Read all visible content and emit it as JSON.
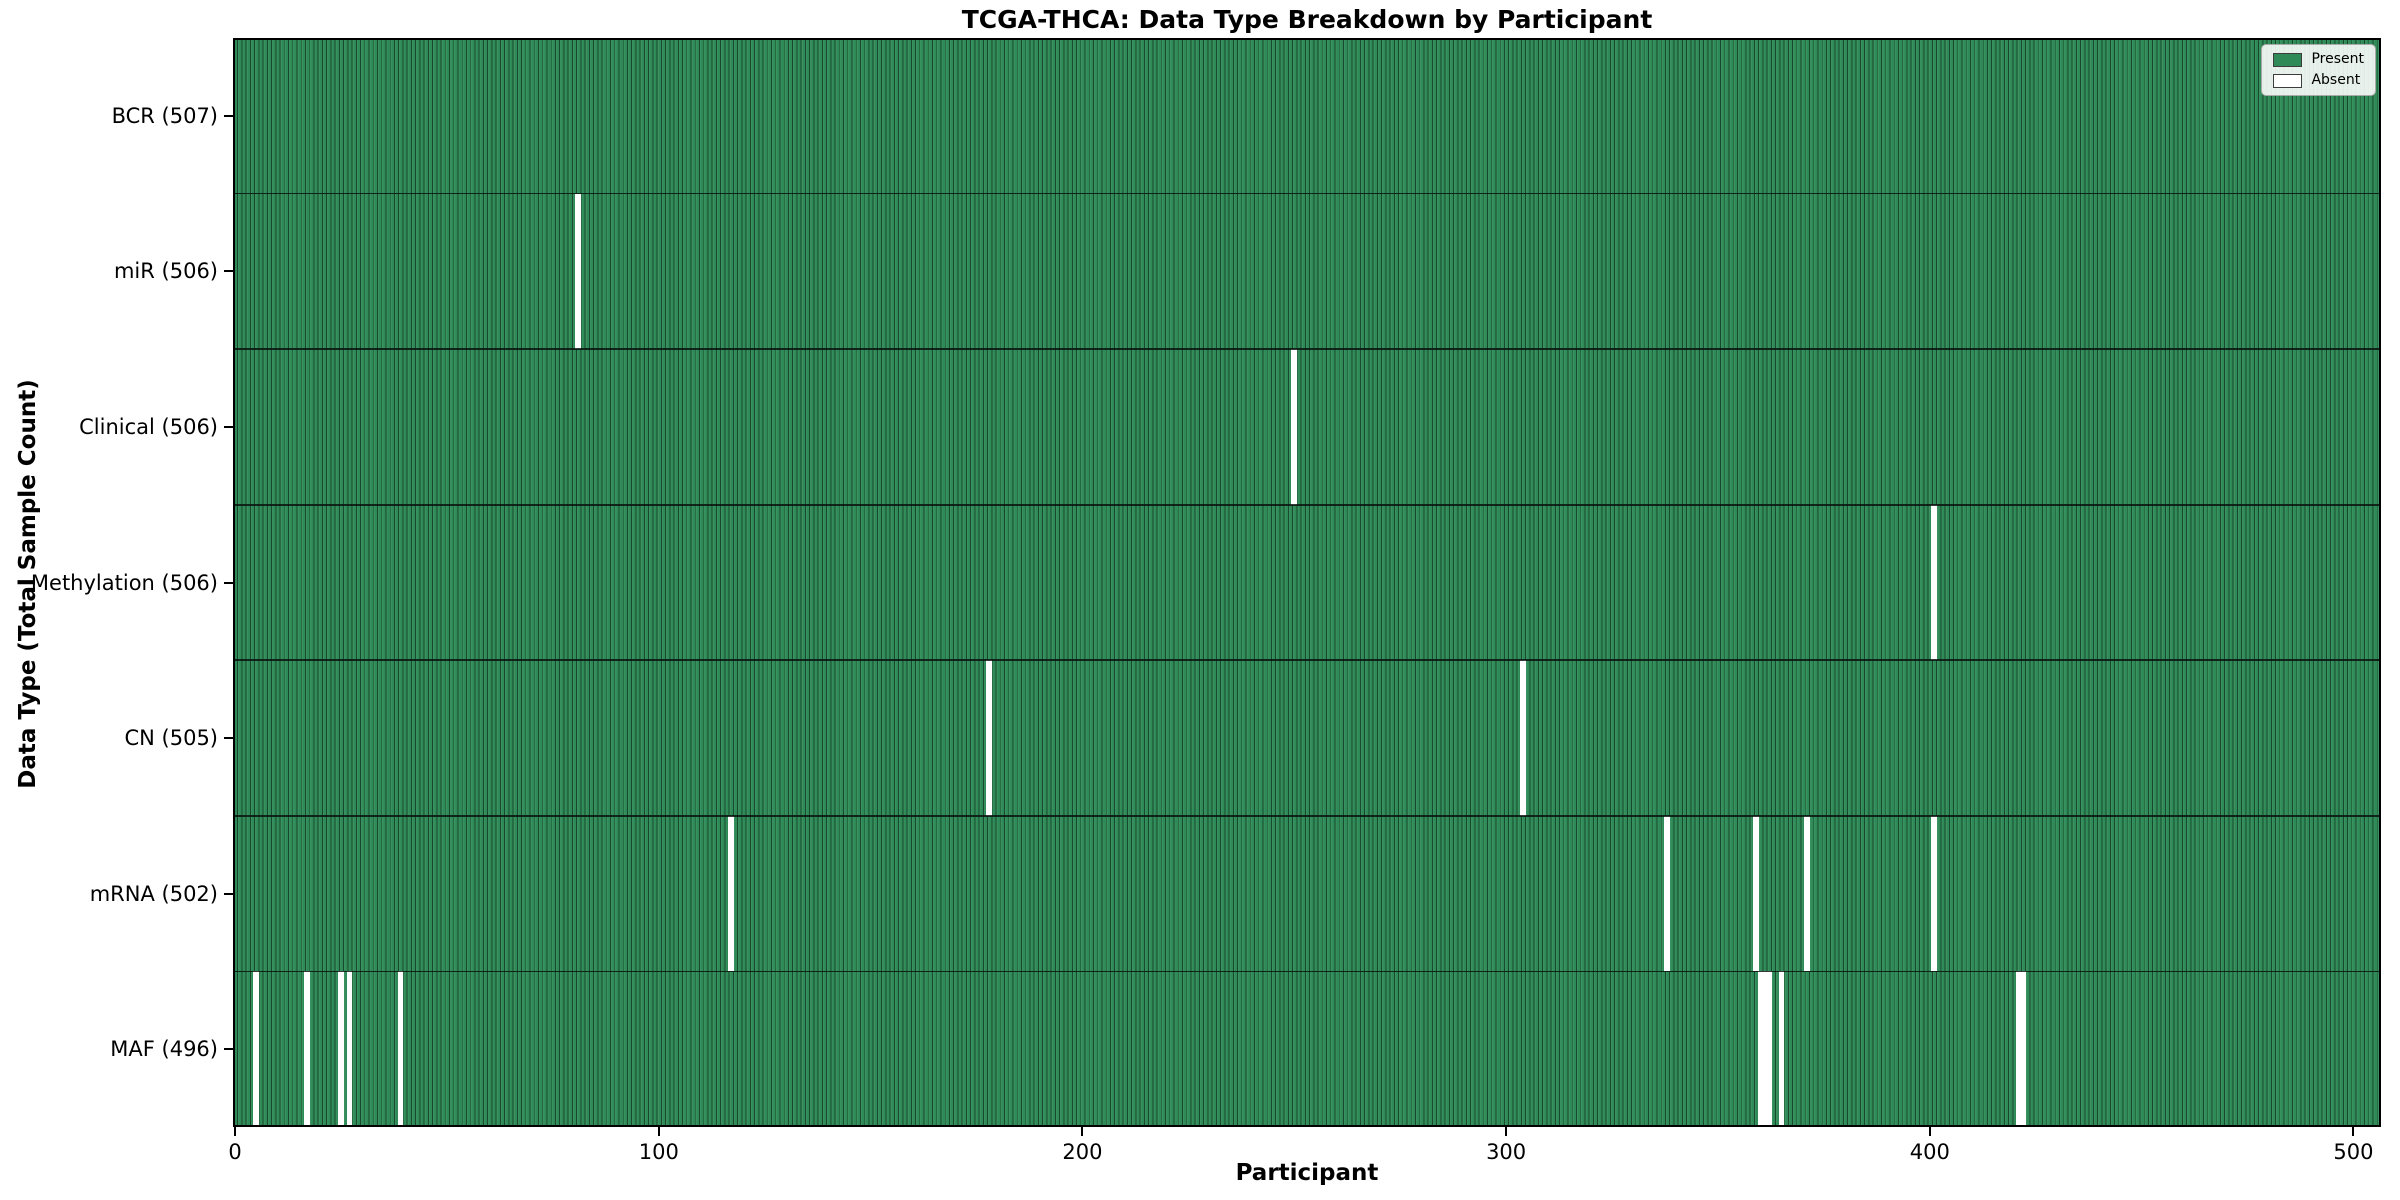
{
  "figure": {
    "title": "TCGA-THCA: Data Type Breakdown by Participant"
  },
  "chart_data": {
    "type": "heatmap",
    "title": "TCGA-THCA: Data Type Breakdown by Participant",
    "xlabel": "Participant",
    "ylabel": "Data Type (Total Sample Count)",
    "total_participants": 507,
    "xlim": [
      0,
      507
    ],
    "x_ticks": [
      0,
      100,
      200,
      300,
      400,
      500
    ],
    "legend_position": "upper right",
    "grid": false,
    "colors": {
      "present": "#2E8B57",
      "absent": "#FFFFFF",
      "bar_edge": "#1B5235",
      "row_separator": "#111111"
    },
    "legend": [
      {
        "label": "Present",
        "color": "#2E8B57"
      },
      {
        "label": "Absent",
        "color": "#FFFFFF"
      }
    ],
    "rows": [
      {
        "label": "BCR (507)",
        "data_type": "BCR",
        "count": 507,
        "absent_participants": []
      },
      {
        "label": "miR (506)",
        "data_type": "miR",
        "count": 506,
        "absent_participants": [
          81
        ]
      },
      {
        "label": "Clinical (506)",
        "data_type": "Clinical",
        "count": 506,
        "absent_participants": [
          250
        ]
      },
      {
        "label": "Methylation (506)",
        "data_type": "Methylation",
        "count": 506,
        "absent_participants": [
          401
        ]
      },
      {
        "label": "CN (505)",
        "data_type": "CN",
        "count": 505,
        "absent_participants": [
          178,
          304
        ]
      },
      {
        "label": "mRNA (502)",
        "data_type": "mRNA",
        "count": 502,
        "absent_participants": [
          117,
          338,
          359,
          371,
          401
        ]
      },
      {
        "label": "MAF (496)",
        "data_type": "MAF",
        "count": 496,
        "absent_participants": [
          5,
          17,
          25,
          27,
          39,
          360,
          361,
          362,
          365,
          421,
          422
        ]
      }
    ]
  }
}
